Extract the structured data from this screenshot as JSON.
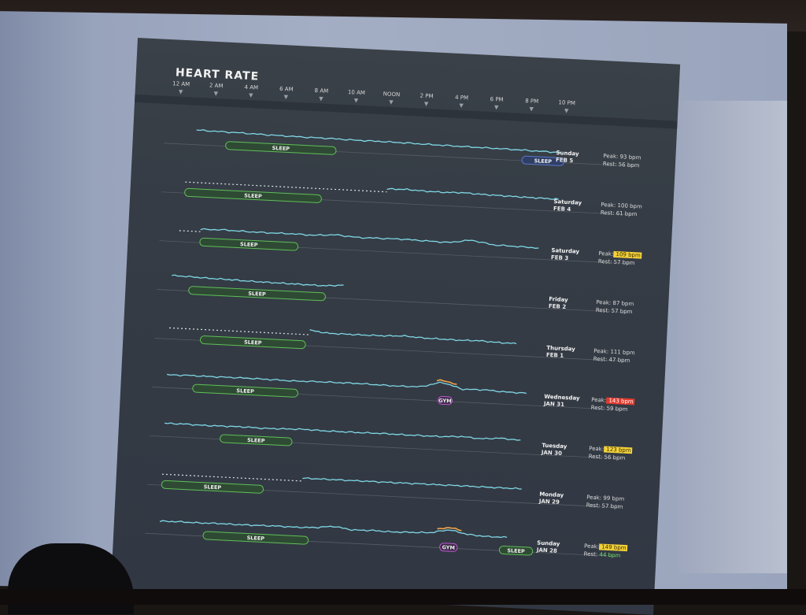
{
  "title": "HEART RATE",
  "time_ticks": [
    "12 AM",
    "2 AM",
    "4 AM",
    "6 AM",
    "8 AM",
    "10 AM",
    "NOON",
    "2 PM",
    "4 PM",
    "6 PM",
    "8 PM",
    "10 PM"
  ],
  "chart_data": {
    "type": "line",
    "title": "HEART RATE",
    "x_ticks": [
      "12 AM",
      "2 AM",
      "4 AM",
      "6 AM",
      "8 AM",
      "10 AM",
      "NOON",
      "2 PM",
      "4 PM",
      "6 PM",
      "8 PM",
      "10 PM"
    ],
    "x_unit": "hours",
    "days": [
      {
        "dow": "Sunday",
        "date": "FEB 5",
        "peak": "Peak: 93 bpm",
        "rest": "Rest: 56 bpm",
        "peak_highlight": "",
        "rest_highlight": "",
        "start_h": 1.0,
        "dotted_until": null,
        "end_h": 21.8,
        "segments": [
          {
            "label": "SLEEP",
            "start_h": 2.7,
            "end_h": 9.0,
            "color": "#5fbf58"
          },
          {
            "label": "SLEEP",
            "start_h": 19.6,
            "end_h": 22.0,
            "color": "#5b78c8"
          }
        ],
        "shape": [
          0.62,
          0.58,
          0.55,
          0.5,
          0.47,
          0.45,
          0.44,
          0.4,
          0.4,
          0.38,
          0.35,
          0.32,
          0.3,
          0.28,
          0.26,
          0.22,
          0.2
        ]
      },
      {
        "dow": "Saturday",
        "date": "FEB 4",
        "peak": "Peak: 100 bpm",
        "rest": "Rest: 61 bpm",
        "peak_highlight": "",
        "rest_highlight": "",
        "start_h": 0.5,
        "dotted_until": 12.0,
        "end_h": 21.8,
        "segments": [
          {
            "label": "SLEEP",
            "start_h": 0.5,
            "end_h": 8.3,
            "color": "#5fbf58"
          }
        ],
        "shape": [
          0.55,
          0.6,
          0.52,
          0.5,
          0.55,
          0.48,
          0.45,
          0.42,
          0.4,
          0.38
        ]
      },
      {
        "dow": "Saturday",
        "date": "FEB 3",
        "peak": "Peak:",
        "peak_value": "109 bpm",
        "rest": "Rest: 57 bpm",
        "peak_highlight": "yellow",
        "rest_highlight": "",
        "start_h": 0.3,
        "dotted_until": 1.5,
        "end_h": 20.8,
        "segments": [
          {
            "label": "SLEEP",
            "start_h": 1.5,
            "end_h": 7.1,
            "color": "#5fbf58"
          }
        ],
        "shape": [
          0.5,
          0.55,
          0.5,
          0.48,
          0.5,
          0.46,
          0.6,
          0.45,
          0.48,
          0.5,
          0.45,
          0.4,
          0.72,
          0.38,
          0.35,
          0.3
        ]
      },
      {
        "dow": "Friday",
        "date": "FEB 2",
        "peak": "Peak: 87 bpm",
        "rest": "Rest: 57 bpm",
        "peak_highlight": "",
        "rest_highlight": "",
        "start_h": 0.0,
        "dotted_until": null,
        "end_h": 9.8,
        "segments": [
          {
            "label": "SLEEP",
            "start_h": 1.0,
            "end_h": 8.8,
            "color": "#5fbf58"
          }
        ],
        "shape": [
          0.62,
          0.58,
          0.52,
          0.5,
          0.45,
          0.42,
          0.4,
          0.38,
          0.36,
          0.5
        ]
      },
      {
        "dow": "Thursday",
        "date": "FEB 1",
        "peak": "Peak: 111 bpm",
        "rest": "Rest: 47 bpm",
        "peak_highlight": "",
        "rest_highlight": "",
        "start_h": 0.0,
        "dotted_until": 8.0,
        "end_h": 19.8,
        "segments": [
          {
            "label": "SLEEP",
            "start_h": 1.8,
            "end_h": 7.8,
            "color": "#5fbf58"
          }
        ],
        "shape": [
          0.7,
          0.5,
          0.5,
          0.5,
          0.52,
          0.6,
          0.5,
          0.48,
          0.45,
          0.5,
          0.42,
          0.4
        ]
      },
      {
        "dow": "Wednesday",
        "date": "JAN 31",
        "peak": "Peak:",
        "peak_value": "143 bpm",
        "rest": "Rest: 59 bpm",
        "peak_highlight": "red",
        "rest_highlight": "",
        "start_h": 0.0,
        "dotted_until": null,
        "end_h": 20.5,
        "segments": [
          {
            "label": "SLEEP",
            "start_h": 1.5,
            "end_h": 7.5,
            "color": "#5fbf58"
          },
          {
            "label": "GYM",
            "start_h": 15.5,
            "end_h": 16.3,
            "color": "#c05ad0"
          }
        ],
        "shape": [
          0.45,
          0.5,
          0.48,
          0.5,
          0.5,
          0.48,
          0.45,
          0.5,
          0.5,
          0.52,
          0.48,
          0.45,
          0.5,
          1.0,
          0.45,
          0.5,
          0.4,
          0.38
        ]
      },
      {
        "dow": "Tuesday",
        "date": "JAN 30",
        "peak": "Peak:",
        "peak_value": "123 bpm",
        "rest": "Rest: 56 bpm",
        "peak_highlight": "yellow",
        "rest_highlight": "",
        "start_h": 0.0,
        "dotted_until": null,
        "end_h": 20.3,
        "segments": [
          {
            "label": "SLEEP",
            "start_h": 3.2,
            "end_h": 7.3,
            "color": "#5fbf58"
          }
        ],
        "shape": [
          0.48,
          0.5,
          0.46,
          0.48,
          0.5,
          0.46,
          0.5,
          0.55,
          0.5,
          0.5,
          0.5,
          0.52,
          0.5,
          0.5,
          0.5,
          0.6,
          0.48,
          0.62,
          0.5
        ]
      },
      {
        "dow": "Monday",
        "date": "JAN 29",
        "peak": "Peak: 99 bpm",
        "rest": "Rest: 57 bpm",
        "peak_highlight": "",
        "rest_highlight": "",
        "start_h": 0.0,
        "dotted_until": 8.0,
        "end_h": 20.5,
        "segments": [
          {
            "label": "SLEEP",
            "start_h": 0.0,
            "end_h": 5.8,
            "color": "#5fbf58"
          }
        ],
        "shape": [
          0.55,
          0.55,
          0.55,
          0.55,
          0.55,
          0.55,
          0.56,
          0.55,
          0.56,
          0.55,
          0.55,
          0.55
        ]
      },
      {
        "dow": "Sunday",
        "date": "JAN 28",
        "peak": "Peak:",
        "peak_value": "149 bpm",
        "rest": "Rest:",
        "rest_value": "44 bpm",
        "peak_highlight": "yellow",
        "rest_highlight": "green",
        "start_h": 0.0,
        "dotted_until": null,
        "end_h": 19.8,
        "segments": [
          {
            "label": "SLEEP",
            "start_h": 2.5,
            "end_h": 8.5,
            "color": "#5fbf58"
          },
          {
            "label": "GYM",
            "start_h": 16.0,
            "end_h": 17.0,
            "color": "#c05ad0"
          },
          {
            "label": "SLEEP",
            "start_h": 19.4,
            "end_h": 21.3,
            "color": "#5fbf58"
          }
        ],
        "shape": [
          0.45,
          0.48,
          0.46,
          0.5,
          0.48,
          0.5,
          0.52,
          0.5,
          0.55,
          0.75,
          0.5,
          0.55,
          0.5,
          0.55,
          0.6,
          0.95,
          0.6,
          0.5,
          0.52
        ]
      }
    ]
  }
}
